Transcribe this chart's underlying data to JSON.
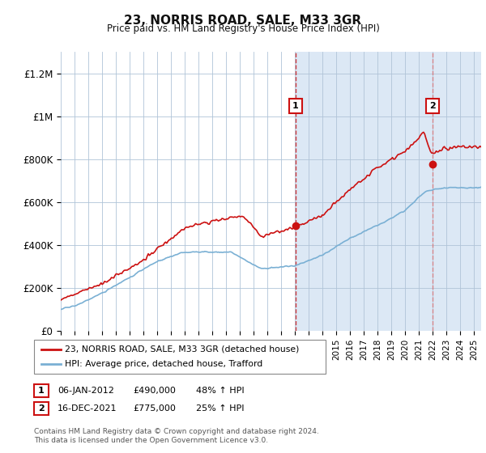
{
  "title": "23, NORRIS ROAD, SALE, M33 3GR",
  "subtitle": "Price paid vs. HM Land Registry's House Price Index (HPI)",
  "ylabel_ticks": [
    "£0",
    "£200K",
    "£400K",
    "£600K",
    "£800K",
    "£1M",
    "£1.2M"
  ],
  "ytick_values": [
    0,
    200000,
    400000,
    600000,
    800000,
    1000000,
    1200000
  ],
  "ylim": [
    0,
    1300000
  ],
  "legend_line1": "23, NORRIS ROAD, SALE, M33 3GR (detached house)",
  "legend_line2": "HPI: Average price, detached house, Trafford",
  "annotation1_num": "1",
  "annotation1_date": "06-JAN-2012",
  "annotation1_price": "£490,000",
  "annotation1_change": "48% ↑ HPI",
  "annotation2_num": "2",
  "annotation2_date": "16-DEC-2021",
  "annotation2_price": "£775,000",
  "annotation2_change": "25% ↑ HPI",
  "footnote": "Contains HM Land Registry data © Crown copyright and database right 2024.\nThis data is licensed under the Open Government Licence v3.0.",
  "sale1_year": 2012.04,
  "sale1_price": 490000,
  "sale2_year": 2021.96,
  "sale2_price": 775000,
  "shade_start": 2012.04,
  "plot_bg": "#dce8f5",
  "plot_bg_left": "#ffffff",
  "red_line_color": "#cc1111",
  "blue_line_color": "#7ab0d4",
  "vline1_color": "#cc1111",
  "vline2_color": "#dd5555",
  "grid_color": "#b0c4d8",
  "title_color": "#111111",
  "xlim_start": 1995,
  "xlim_end": 2025.5
}
